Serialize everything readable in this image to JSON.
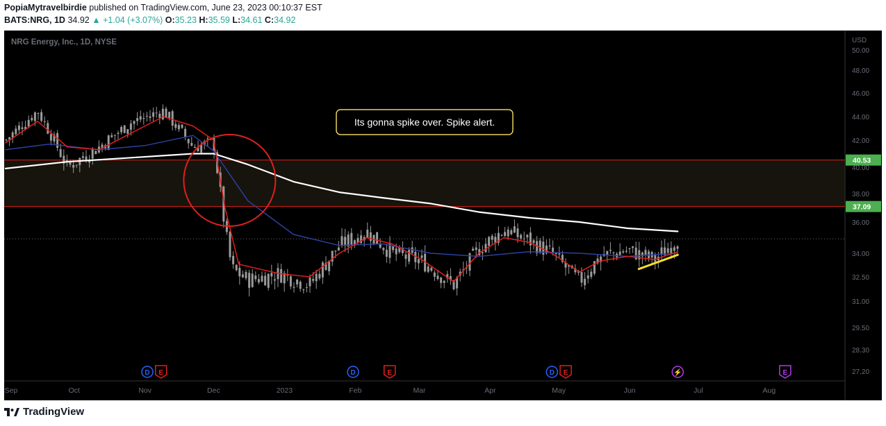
{
  "header": {
    "publisher": "PopiaMytravelbirdie",
    "published_text": "published on TradingView.com, June 23, 2023 00:10:37 EST",
    "symbol": "BATS:NRG, 1D",
    "last": "34.92",
    "change": "▲ +1.04 (+3.07%)",
    "o_label": "O:",
    "o_val": "35.23",
    "h_label": "H:",
    "h_val": "35.59",
    "l_label": "L:",
    "l_val": "34.61",
    "c_label": "C:",
    "c_val": "34.92"
  },
  "chart_title": "NRG Energy, Inc., 1D, NYSE",
  "annotation": "Its gonna spike over. Spike alert.",
  "currency_label": "USD",
  "footer_brand": "TradingView",
  "colors": {
    "background": "#000000",
    "candle": "#9a9a9a",
    "ema_fast": "#e0201c",
    "ema_mid": "#2b3fa0",
    "ema_slow": "#ffffff",
    "trend": "#f5e02a",
    "zone_line": "#e0201c",
    "price_tag": "#4caf50",
    "circle": "#e0201c",
    "callout_border": "#e8d35a"
  },
  "chart_data": {
    "type": "line",
    "title": "NRG Energy, Inc., 1D, NYSE",
    "y_ticks": [
      "50.00",
      "48.00",
      "46.00",
      "44.00",
      "42.00",
      "40.00",
      "38.00",
      "36.00",
      "34.00",
      "32.50",
      "31.00",
      "29.50",
      "28.30",
      "27.20"
    ],
    "ylim": [
      27.2,
      50.0
    ],
    "x_ticks": [
      "Sep",
      "Oct",
      "Nov",
      "Dec",
      "2023",
      "Feb",
      "Mar",
      "Apr",
      "May",
      "Jun",
      "Jul",
      "Aug"
    ],
    "price_tags": [
      {
        "label": "40.53",
        "value": 40.53
      },
      {
        "label": "37.09",
        "value": 37.09
      }
    ],
    "zone": [
      37.09,
      40.53
    ],
    "last_price": 34.92,
    "series": [
      {
        "key": "price",
        "x": [
          "2022-09-01",
          "2022-09-15",
          "2022-09-28",
          "2022-10-12",
          "2022-10-26",
          "2022-11-09",
          "2022-11-22",
          "2022-12-01",
          "2022-12-06",
          "2022-12-09",
          "2022-12-16",
          "2022-12-30",
          "2023-01-12",
          "2023-01-25",
          "2023-02-06",
          "2023-02-17",
          "2023-03-02",
          "2023-03-16",
          "2023-03-27",
          "2023-04-07",
          "2023-04-18",
          "2023-04-28",
          "2023-05-10",
          "2023-05-19",
          "2023-05-31",
          "2023-06-12",
          "2023-06-22"
        ],
        "values": [
          42.0,
          44.5,
          40.0,
          41.5,
          43.5,
          44.5,
          41.5,
          41.8,
          35.5,
          33.0,
          32.3,
          32.7,
          32.0,
          34.5,
          35.4,
          34.0,
          33.5,
          32.0,
          34.3,
          35.5,
          34.8,
          34.0,
          32.2,
          33.8,
          34.2,
          33.6,
          34.92
        ]
      },
      {
        "key": "ema_fast",
        "x": [
          "2022-09-01",
          "2022-09-15",
          "2022-09-28",
          "2022-10-12",
          "2022-10-26",
          "2022-11-09",
          "2022-11-22",
          "2022-12-01",
          "2022-12-06",
          "2022-12-12",
          "2022-12-30",
          "2023-01-12",
          "2023-01-25",
          "2023-02-06",
          "2023-02-17",
          "2023-03-02",
          "2023-03-16",
          "2023-03-27",
          "2023-04-07",
          "2023-04-18",
          "2023-04-28",
          "2023-05-10",
          "2023-05-19",
          "2023-05-31",
          "2023-06-12",
          "2023-06-22"
        ],
        "values": [
          41.8,
          43.6,
          41.5,
          41.3,
          42.6,
          44.0,
          43.2,
          42.0,
          37.0,
          33.3,
          32.7,
          32.5,
          34.0,
          35.0,
          34.6,
          33.6,
          32.2,
          34.0,
          35.0,
          34.7,
          34.0,
          32.8,
          33.5,
          33.8,
          33.6,
          34.1
        ]
      },
      {
        "key": "ema_mid",
        "x": [
          "2022-09-01",
          "2022-09-20",
          "2022-10-12",
          "2022-11-01",
          "2022-11-22",
          "2022-12-01",
          "2022-12-16",
          "2023-01-05",
          "2023-01-25",
          "2023-02-13",
          "2023-03-06",
          "2023-03-27",
          "2023-04-18",
          "2023-05-10",
          "2023-05-31",
          "2023-06-22"
        ],
        "values": [
          41.3,
          41.7,
          41.3,
          41.6,
          42.4,
          41.2,
          37.5,
          35.2,
          34.5,
          34.6,
          34.0,
          33.8,
          34.1,
          34.0,
          33.8,
          34.0
        ]
      },
      {
        "key": "ema_slow",
        "x": [
          "2022-09-01",
          "2022-09-28",
          "2022-10-26",
          "2022-11-22",
          "2022-12-01",
          "2022-12-16",
          "2023-01-05",
          "2023-01-25",
          "2023-02-13",
          "2023-03-06",
          "2023-03-27",
          "2023-04-18",
          "2023-05-10",
          "2023-05-31",
          "2023-06-22"
        ],
        "values": [
          39.9,
          40.4,
          40.7,
          41.0,
          41.0,
          40.2,
          38.9,
          38.1,
          37.7,
          37.3,
          36.7,
          36.3,
          36.0,
          35.6,
          35.4
        ]
      },
      {
        "key": "trendline",
        "x": [
          "2023-06-05",
          "2023-06-22"
        ],
        "values": [
          33.0,
          33.9
        ]
      }
    ],
    "events": [
      {
        "label": "D",
        "kind": "dividend",
        "date": "2022-11-02"
      },
      {
        "label": "E",
        "kind": "earnings",
        "date": "2022-11-08"
      },
      {
        "label": "D",
        "kind": "dividend",
        "date": "2023-01-31"
      },
      {
        "label": "E",
        "kind": "earnings",
        "date": "2023-02-16"
      },
      {
        "label": "D",
        "kind": "dividend",
        "date": "2023-04-28"
      },
      {
        "label": "E",
        "kind": "earnings",
        "date": "2023-05-04"
      },
      {
        "label": "⚡",
        "kind": "split",
        "date": "2023-06-22"
      },
      {
        "label": "E",
        "kind": "earnings",
        "date": "2023-08-08"
      }
    ]
  }
}
